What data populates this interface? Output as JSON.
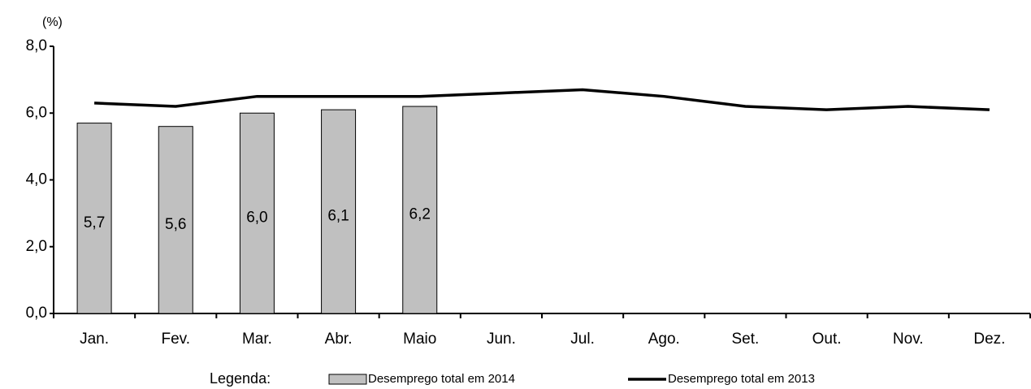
{
  "chart_data": {
    "type": "bar",
    "unit_label": "(%)",
    "legend_title": "Legenda:",
    "categories": [
      "Jan.",
      "Fev.",
      "Mar.",
      "Abr.",
      "Maio",
      "Jun.",
      "Jul.",
      "Ago.",
      "Set.",
      "Out.",
      "Nov.",
      "Dez."
    ],
    "series": [
      {
        "name": "Desemprego total em 2014",
        "type": "bar",
        "color": "#c0c0c0",
        "values": [
          5.7,
          5.6,
          6.0,
          6.1,
          6.2,
          null,
          null,
          null,
          null,
          null,
          null,
          null
        ],
        "value_labels": [
          "5,7",
          "5,6",
          "6,0",
          "6,1",
          "6,2",
          null,
          null,
          null,
          null,
          null,
          null,
          null
        ]
      },
      {
        "name": "Desemprego total em 2013",
        "type": "line",
        "color": "#000000",
        "values": [
          6.3,
          6.2,
          6.5,
          6.5,
          6.5,
          6.6,
          6.7,
          6.5,
          6.2,
          6.1,
          6.2,
          6.1
        ]
      }
    ],
    "ylim": [
      0,
      8
    ],
    "yticks": [
      {
        "value": 0,
        "label": "0,0"
      },
      {
        "value": 2,
        "label": "2,0"
      },
      {
        "value": 4,
        "label": "4,0"
      },
      {
        "value": 6,
        "label": "6,0"
      },
      {
        "value": 8,
        "label": "8,0"
      }
    ]
  }
}
